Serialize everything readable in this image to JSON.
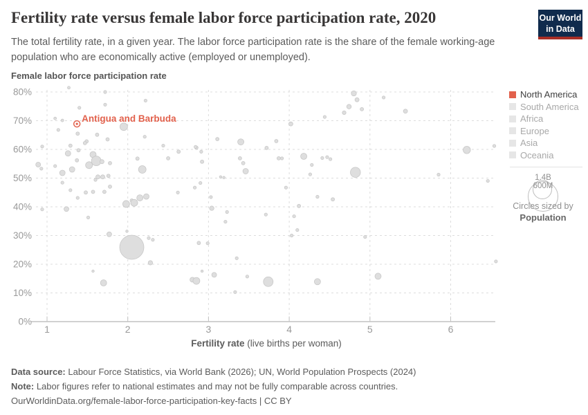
{
  "header": {
    "title": "Fertility rate versus female labor force participation rate, 2020",
    "subtitle": "The total fertility rate, in a given year. The labor force participation rate is the share of the female working-age population who are economically active (employed or unemployed).",
    "logo_line1": "Our World",
    "logo_line2": "in Data"
  },
  "legend": {
    "items": [
      {
        "label": "North America",
        "active": true,
        "color": "#e2614c"
      },
      {
        "label": "South America",
        "active": false,
        "color": "#e6e6e6"
      },
      {
        "label": "Africa",
        "active": false,
        "color": "#e6e6e6"
      },
      {
        "label": "Europe",
        "active": false,
        "color": "#e6e6e6"
      },
      {
        "label": "Asia",
        "active": false,
        "color": "#e6e6e6"
      },
      {
        "label": "Oceania",
        "active": false,
        "color": "#e6e6e6"
      }
    ],
    "size_legend": {
      "outer_label": "1.4B",
      "inner_label": "600M",
      "caption": "Circles sized by",
      "caption_bold": "Population"
    }
  },
  "chart_data": {
    "type": "scatter",
    "title": "Fertility rate versus female labor force participation rate, 2020",
    "xlabel_bold": "Fertility rate",
    "xlabel_rest": " (live births per woman)",
    "ylabel": "Female labor force participation rate",
    "x_ticks": [
      "1",
      "2",
      "3",
      "4",
      "5",
      "6"
    ],
    "y_ticks": [
      "0%",
      "10%",
      "20%",
      "30%",
      "40%",
      "50%",
      "60%",
      "70%",
      "80%"
    ],
    "xlim": [
      0.85,
      6.6
    ],
    "ylim": [
      0,
      80
    ],
    "grid": true,
    "legend_position": "right",
    "point_color": "#dedede",
    "accent_color": "#e2614c",
    "highlight": {
      "label": "Antigua and Barbuda",
      "fertility": 1.37,
      "participation": 68.9
    },
    "points_format": "[fertility_rate, female_labor_force_participation_pct, bubble_radius_px]",
    "points": [
      [
        1.27,
        81.5,
        2
      ],
      [
        1.72,
        80.0,
        2.2
      ],
      [
        1.4,
        74.5,
        2.2
      ],
      [
        1.72,
        75.6,
        2.2
      ],
      [
        2.22,
        77.0,
        2.2
      ],
      [
        1.1,
        70.8,
        2
      ],
      [
        1.19,
        70.1,
        2
      ],
      [
        1.14,
        66.8,
        2.2
      ],
      [
        1.38,
        65.5,
        2.5
      ],
      [
        1.62,
        65.1,
        2.5
      ],
      [
        1.75,
        63.5,
        2.5
      ],
      [
        1.49,
        62.8,
        2.5
      ],
      [
        1.95,
        67.9,
        5.5
      ],
      [
        2.21,
        64.4,
        2.2
      ],
      [
        0.94,
        61.0,
        2.2
      ],
      [
        1.29,
        61.3,
        2.5
      ],
      [
        1.47,
        62.2,
        2.5
      ],
      [
        1.39,
        59.7,
        2.5
      ],
      [
        1.26,
        58.6,
        4
      ],
      [
        1.57,
        58.2,
        4.5
      ],
      [
        1.61,
        56.0,
        7
      ],
      [
        1.52,
        54.5,
        5
      ],
      [
        1.68,
        55.7,
        3
      ],
      [
        1.37,
        56.2,
        2.5
      ],
      [
        1.31,
        53.0,
        4
      ],
      [
        1.19,
        51.8,
        4
      ],
      [
        1.1,
        54.2,
        2.2
      ],
      [
        0.89,
        54.7,
        3.5
      ],
      [
        0.93,
        53.3,
        2.2
      ],
      [
        1.78,
        55.2,
        2.5
      ],
      [
        2.12,
        56.8,
        2.5
      ],
      [
        2.18,
        53.0,
        5.5
      ],
      [
        1.63,
        50.4,
        3
      ],
      [
        1.69,
        50.4,
        3
      ],
      [
        1.76,
        50.8,
        2.5
      ],
      [
        1.6,
        49.4,
        2.2
      ],
      [
        1.78,
        47.0,
        2.5
      ],
      [
        1.19,
        48.4,
        2.2
      ],
      [
        1.29,
        45.8,
        2.2
      ],
      [
        1.38,
        43.1,
        2.2
      ],
      [
        1.48,
        45.0,
        2.5
      ],
      [
        1.57,
        45.2,
        2.5
      ],
      [
        1.71,
        45.2,
        2.5
      ],
      [
        2.05,
        42.2,
        2.5
      ],
      [
        2.1,
        41.4,
        2.5
      ],
      [
        1.98,
        41.0,
        5
      ],
      [
        2.08,
        41.4,
        5
      ],
      [
        2.15,
        43.1,
        4.5
      ],
      [
        2.23,
        43.6,
        4
      ],
      [
        1.24,
        39.2,
        3.5
      ],
      [
        0.94,
        39.1,
        2.2
      ],
      [
        1.51,
        36.3,
        2.2
      ],
      [
        1.77,
        30.4,
        3.5
      ],
      [
        1.99,
        31.5,
        1.8
      ],
      [
        2.09,
        27.5,
        2.2
      ],
      [
        2.15,
        27.2,
        2.2
      ],
      [
        2.26,
        29.1,
        2.2
      ],
      [
        2.31,
        28.5,
        2.2
      ],
      [
        2.05,
        25.9,
        17.5
      ],
      [
        2.28,
        20.5,
        3.2
      ],
      [
        1.57,
        17.6,
        1.8
      ],
      [
        1.7,
        13.5,
        4.5
      ],
      [
        2.44,
        61.3,
        2.2
      ],
      [
        2.5,
        56.9,
        2.5
      ],
      [
        2.63,
        59.2,
        2.5
      ],
      [
        2.85,
        60.6,
        2.5
      ],
      [
        2.62,
        45.0,
        2.2
      ],
      [
        3.11,
        63.6,
        2.5
      ],
      [
        3.4,
        62.6,
        4.5
      ],
      [
        2.84,
        60.9,
        2.2
      ],
      [
        3.84,
        62.9,
        2.5
      ],
      [
        3.72,
        60.5,
        2.5
      ],
      [
        2.91,
        59.2,
        2.2
      ],
      [
        2.92,
        55.7,
        2.5
      ],
      [
        3.39,
        56.9,
        2.5
      ],
      [
        3.43,
        55.2,
        2.5
      ],
      [
        3.87,
        56.9,
        2.5
      ],
      [
        3.46,
        52.4,
        4
      ],
      [
        3.15,
        50.4,
        1.8
      ],
      [
        3.19,
        50.2,
        1.8
      ],
      [
        2.9,
        48.3,
        2.2
      ],
      [
        2.83,
        46.7,
        2.2
      ],
      [
        3.03,
        43.4,
        2.2
      ],
      [
        3.96,
        46.7,
        2.2
      ],
      [
        3.04,
        39.5,
        3.2
      ],
      [
        3.23,
        38.2,
        2.2
      ],
      [
        3.21,
        34.8,
        2.2
      ],
      [
        3.71,
        37.3,
        2.2
      ],
      [
        2.88,
        27.4,
        2.5
      ],
      [
        2.99,
        27.3,
        2.2
      ],
      [
        3.35,
        22.1,
        2.2
      ],
      [
        3.07,
        16.3,
        3.5
      ],
      [
        3.48,
        15.7,
        2.2
      ],
      [
        3.74,
        13.9,
        7
      ],
      [
        3.33,
        10.3,
        2.2
      ],
      [
        2.8,
        14.6,
        3.5
      ],
      [
        2.85,
        14.2,
        5
      ],
      [
        2.92,
        17.6,
        1.8
      ],
      [
        4.8,
        79.5,
        3.7
      ],
      [
        4.84,
        77.3,
        3
      ],
      [
        5.17,
        78.1,
        2.2
      ],
      [
        4.74,
        74.9,
        3.3
      ],
      [
        4.9,
        74.0,
        2.5
      ],
      [
        4.68,
        72.8,
        2.7
      ],
      [
        4.44,
        71.3,
        2.2
      ],
      [
        4.02,
        68.9,
        3
      ],
      [
        5.44,
        73.3,
        3
      ],
      [
        4.18,
        57.6,
        4.5
      ],
      [
        4.28,
        54.6,
        2.2
      ],
      [
        4.41,
        57.0,
        2.2
      ],
      [
        4.47,
        57.3,
        2.2
      ],
      [
        4.51,
        56.6,
        2.2
      ],
      [
        4.26,
        51.3,
        2.2
      ],
      [
        4.82,
        52.0,
        7.3
      ],
      [
        4.35,
        43.5,
        2.2
      ],
      [
        4.54,
        42.6,
        2.5
      ],
      [
        4.12,
        40.3,
        2.5
      ],
      [
        4.06,
        36.7,
        2.2
      ],
      [
        4.1,
        31.9,
        2.2
      ],
      [
        4.03,
        30.0,
        2.2
      ],
      [
        4.94,
        29.5,
        2.2
      ],
      [
        4.35,
        13.9,
        4.5
      ],
      [
        5.1,
        15.8,
        4.5
      ],
      [
        6.2,
        59.8,
        5.3
      ],
      [
        6.54,
        61.2,
        2.2
      ],
      [
        5.85,
        51.2,
        2.2
      ],
      [
        6.46,
        49.0,
        2.2
      ],
      [
        6.56,
        21.0,
        2.2
      ],
      [
        3.91,
        56.9,
        2.2
      ]
    ]
  },
  "footer": {
    "datasource_label": "Data source:",
    "datasource_text": " Labour Force Statistics, via World Bank (2026); UN, World Population Prospects (2024)",
    "note_label": "Note:",
    "note_text": " Labor figures refer to national estimates and may not be fully comparable across countries.",
    "url": "OurWorldinData.org/female-labor-force-participation-key-facts",
    "separator": " | ",
    "license": "CC BY"
  }
}
